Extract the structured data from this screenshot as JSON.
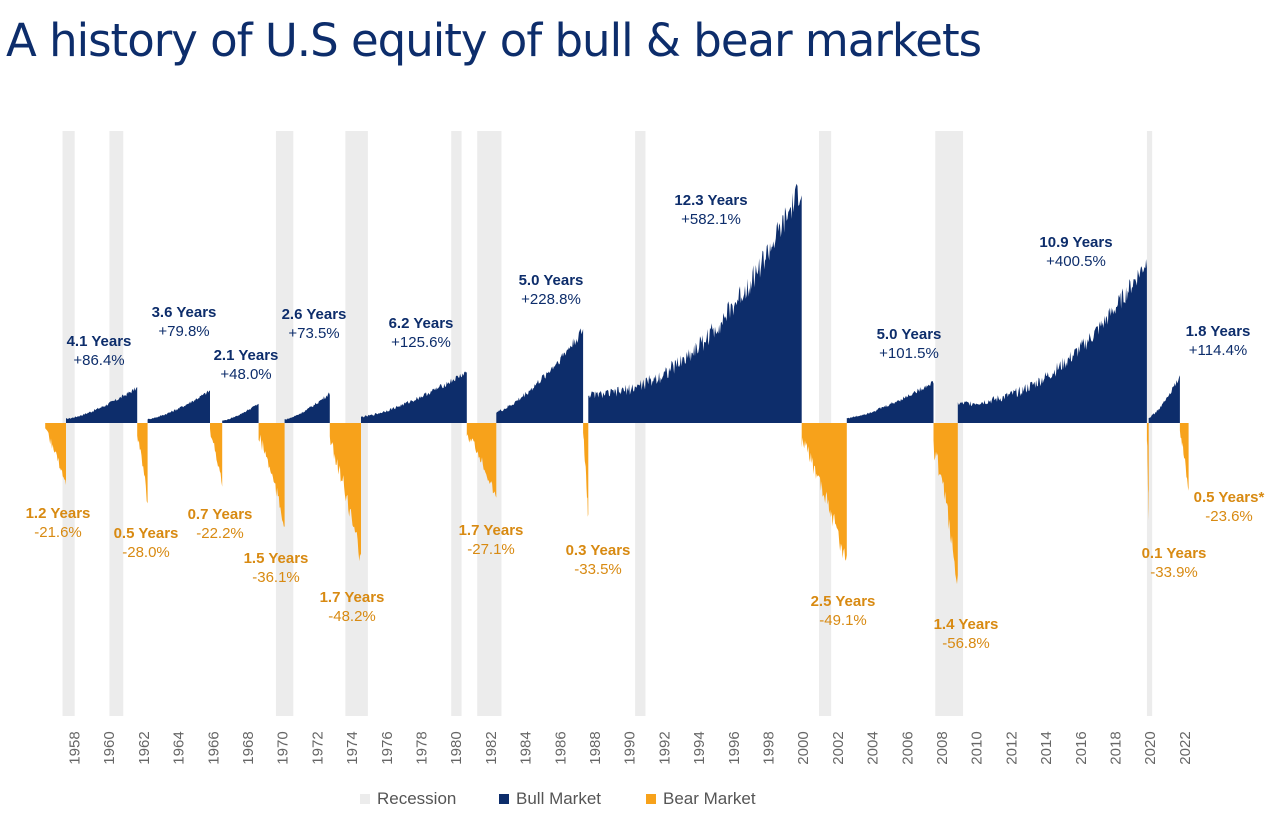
{
  "title": "A history of U.S equity of bull & bear markets",
  "colors": {
    "bull": "#0d2d6b",
    "bear": "#f7a21b",
    "recession": "#ececec",
    "bull_label": "#0d2d6b",
    "bear_label": "#d88a12",
    "axis_text": "#666666"
  },
  "chart_data": {
    "type": "area",
    "x_ticks": [
      "1958",
      "1960",
      "1962",
      "1964",
      "1966",
      "1968",
      "1970",
      "1972",
      "1974",
      "1976",
      "1978",
      "1980",
      "1982",
      "1984",
      "1986",
      "1988",
      "1990",
      "1992",
      "1994",
      "1996",
      "1998",
      "2000",
      "2002",
      "2004",
      "2006",
      "2008",
      "2010",
      "2012",
      "2014",
      "2016",
      "2018",
      "2020",
      "2022"
    ],
    "legend": [
      {
        "name": "Recession",
        "color": "#ececec"
      },
      {
        "name": "Bull Market",
        "color": "#0d2d6b"
      },
      {
        "name": "Bear Market",
        "color": "#f7a21b"
      }
    ],
    "recessions": [
      {
        "start": 1957.6,
        "end": 1958.3
      },
      {
        "start": 1960.3,
        "end": 1961.1
      },
      {
        "start": 1969.9,
        "end": 1970.9
      },
      {
        "start": 1973.9,
        "end": 1975.2
      },
      {
        "start": 1980.0,
        "end": 1980.6
      },
      {
        "start": 1981.5,
        "end": 1982.9
      },
      {
        "start": 1990.6,
        "end": 1991.2
      },
      {
        "start": 2001.2,
        "end": 2001.9
      },
      {
        "start": 2007.9,
        "end": 2009.5
      },
      {
        "start": 2020.1,
        "end": 2020.4
      }
    ],
    "bull_markets": [
      {
        "start": 1957.8,
        "end": 1961.9,
        "years": "4.1 Years",
        "change": "+86.4%",
        "value": 86.4
      },
      {
        "start": 1962.5,
        "end": 1966.1,
        "years": "3.6 Years",
        "change": "+79.8%",
        "value": 79.8
      },
      {
        "start": 1966.8,
        "end": 1968.9,
        "years": "2.1 Years",
        "change": "+48.0%",
        "value": 48.0
      },
      {
        "start": 1970.4,
        "end": 1973.0,
        "years": "2.6 Years",
        "change": "+73.5%",
        "value": 73.5
      },
      {
        "start": 1974.8,
        "end": 1980.9,
        "years": "6.2 Years",
        "change": "+125.6%",
        "value": 125.6
      },
      {
        "start": 1982.6,
        "end": 1987.6,
        "years": "5.0 Years",
        "change": "+228.8%",
        "value": 228.8
      },
      {
        "start": 1987.9,
        "end": 2000.2,
        "years": "12.3 Years",
        "change": "+582.1%",
        "value": 582.1
      },
      {
        "start": 2002.8,
        "end": 2007.8,
        "years": "5.0 Years",
        "change": "+101.5%",
        "value": 101.5
      },
      {
        "start": 2009.2,
        "end": 2020.1,
        "years": "10.9 Years",
        "change": "+400.5%",
        "value": 400.5
      },
      {
        "start": 2020.2,
        "end": 2022.0,
        "years": "1.8 Years",
        "change": "+114.4%",
        "value": 114.4
      }
    ],
    "bear_markets": [
      {
        "start": 1956.6,
        "end": 1957.8,
        "years": "1.2 Years",
        "change": "-21.6%",
        "value": -21.6
      },
      {
        "start": 1961.9,
        "end": 1962.5,
        "years": "0.5 Years",
        "change": "-28.0%",
        "value": -28.0
      },
      {
        "start": 1966.1,
        "end": 1966.8,
        "years": "0.7 Years",
        "change": "-22.2%",
        "value": -22.2
      },
      {
        "start": 1968.9,
        "end": 1970.4,
        "years": "1.5 Years",
        "change": "-36.1%",
        "value": -36.1
      },
      {
        "start": 1973.0,
        "end": 1974.8,
        "years": "1.7 Years",
        "change": "-48.2%",
        "value": -48.2
      },
      {
        "start": 1980.9,
        "end": 1982.6,
        "years": "1.7 Years",
        "change": "-27.1%",
        "value": -27.1
      },
      {
        "start": 1987.6,
        "end": 1987.9,
        "years": "0.3 Years",
        "change": "-33.5%",
        "value": -33.5
      },
      {
        "start": 2000.2,
        "end": 2002.8,
        "years": "2.5 Years",
        "change": "-49.1%",
        "value": -49.1
      },
      {
        "start": 2007.8,
        "end": 2009.2,
        "years": "1.4 Years",
        "change": "-56.8%",
        "value": -56.8
      },
      {
        "start": 2020.1,
        "end": 2020.2,
        "years": "0.1 Years",
        "change": "-33.9%",
        "value": -33.9
      },
      {
        "start": 2022.0,
        "end": 2022.5,
        "years": "0.5 Years*",
        "change": "-23.6%",
        "value": -23.6
      }
    ]
  }
}
